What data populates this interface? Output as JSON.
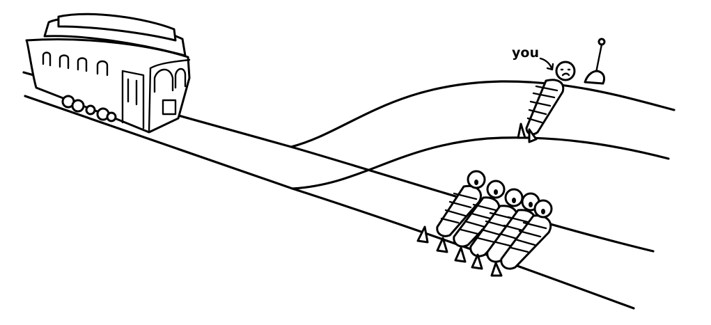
{
  "label": {
    "you": "you"
  },
  "colors": {
    "ink": "#000000",
    "paper": "#ffffff"
  },
  "scene": {
    "people_on_main_track": 5,
    "people_on_side_track": 1
  },
  "icons": [
    "trolley-icon",
    "person-icon",
    "shovel-icon",
    "arrow-icon"
  ]
}
